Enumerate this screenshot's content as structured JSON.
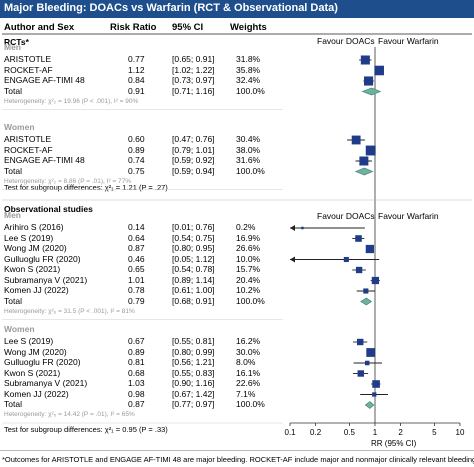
{
  "title": "Major Bleeding: DOACs vs Warfarin (RCT & Observational Data)",
  "columns": {
    "author": "Author and Sex",
    "rr": "Risk Ratio",
    "ci": "95% CI",
    "weights": "Weights"
  },
  "sections": {
    "rct": {
      "label": "RCTs*",
      "favour_left": "Favour DOACs",
      "favour_right": "Favour Warfarin",
      "subgroup_text": "Test for subgroup differences: χ²₁ = 1.21 (P = .27)"
    },
    "obs": {
      "label": "Observational studies",
      "favour_left": "Favour DOACs",
      "favour_right": "Favour Warfarin",
      "subgroup_text": "Test for subgroup differences: χ²₁ = 0.95 (P = .33)"
    }
  },
  "footnote": "*Outcomes for ARISTOTLE and ENGAGE AF-TIMI 48 are major bleeding. ROCKET-AF include major and nonmajor clinically relevant bleeding",
  "colors": {
    "header": "#1f4e8c",
    "marker": "#1f3c88",
    "diamond": "#6fb1a0",
    "heterogeneity": "#9a9a9a"
  },
  "chart_data": {
    "type": "forest",
    "x_scale": "log",
    "xlabel": "RR (95% CI)",
    "xticks": [
      "0.1",
      "0.2",
      "0.5",
      "1",
      "2",
      "5",
      "10"
    ],
    "xlim": [
      0.1,
      10
    ],
    "reference_line": 1,
    "groups": [
      {
        "id": "rct-men",
        "section": "RCTs*",
        "label": "Men",
        "studies": [
          {
            "name": "ARISTOTLE",
            "rr": "0.77",
            "ci": "[0.65; 0.91]",
            "weight": "31.8%",
            "x": 0.77,
            "lo": 0.65,
            "hi": 0.91,
            "w": 31.8
          },
          {
            "name": "ROCKET-AF",
            "rr": "1.12",
            "ci": "[1.02; 1.22]",
            "weight": "35.8%",
            "x": 1.12,
            "lo": 1.02,
            "hi": 1.22,
            "w": 35.8
          },
          {
            "name": "ENGAGE AF-TIMI 48",
            "rr": "0.84",
            "ci": "[0.73; 0.97]",
            "weight": "32.4%",
            "x": 0.84,
            "lo": 0.73,
            "hi": 0.97,
            "w": 32.4
          }
        ],
        "total": {
          "name": "Total",
          "rr": "0.91",
          "ci": "[0.71; 1.16]",
          "weight": "100.0%",
          "x": 0.91,
          "lo": 0.71,
          "hi": 1.16
        },
        "heterogeneity": "Heterogeneity: χ²₂ = 19.96 (P < .001), I² = 90%"
      },
      {
        "id": "rct-women",
        "section": "RCTs*",
        "label": "Women",
        "studies": [
          {
            "name": "ARISTOTLE",
            "rr": "0.60",
            "ci": "[0.47; 0.76]",
            "weight": "30.4%",
            "x": 0.6,
            "lo": 0.47,
            "hi": 0.76,
            "w": 30.4
          },
          {
            "name": "ROCKET-AF",
            "rr": "0.89",
            "ci": "[0.79; 1.01]",
            "weight": "38.0%",
            "x": 0.89,
            "lo": 0.79,
            "hi": 1.01,
            "w": 38.0
          },
          {
            "name": "ENGAGE AF-TIMI 48",
            "rr": "0.74",
            "ci": "[0.59; 0.92]",
            "weight": "31.6%",
            "x": 0.74,
            "lo": 0.59,
            "hi": 0.92,
            "w": 31.6
          }
        ],
        "total": {
          "name": "Total",
          "rr": "0.75",
          "ci": "[0.59; 0.94]",
          "weight": "100.0%",
          "x": 0.75,
          "lo": 0.59,
          "hi": 0.94
        },
        "heterogeneity": "Heterogeneity: χ²₂ = 8.86 (P = .01), I² = 77%"
      },
      {
        "id": "obs-men",
        "section": "Observational studies",
        "label": "Men",
        "studies": [
          {
            "name": "Arihiro S  (2016)",
            "rr": "0.14",
            "ci": "[0.01; 0.76]",
            "weight": "0.2%",
            "x": 0.14,
            "lo": 0.01,
            "hi": 0.76,
            "w": 0.2
          },
          {
            "name": "Lee S (2019)",
            "rr": "0.64",
            "ci": "[0.54; 0.75]",
            "weight": "16.9%",
            "x": 0.64,
            "lo": 0.54,
            "hi": 0.75,
            "w": 16.9
          },
          {
            "name": "Wong JM (2020)",
            "rr": "0.87",
            "ci": "[0.80; 0.95]",
            "weight": "26.6%",
            "x": 0.87,
            "lo": 0.8,
            "hi": 0.95,
            "w": 26.6
          },
          {
            "name": "Gulluoglu FR (2020)",
            "rr": "0.46",
            "ci": "[0.05; 1.12]",
            "weight": "10.0%",
            "x": 0.46,
            "lo": 0.05,
            "hi": 1.12,
            "w": 10.0
          },
          {
            "name": "Kwon S (2021)",
            "rr": "0.65",
            "ci": "[0.54; 0.78]",
            "weight": "15.7%",
            "x": 0.65,
            "lo": 0.54,
            "hi": 0.78,
            "w": 15.7
          },
          {
            "name": "Subramanya V (2021)",
            "rr": "1.01",
            "ci": "[0.89; 1.14]",
            "weight": "20.4%",
            "x": 1.01,
            "lo": 0.89,
            "hi": 1.14,
            "w": 20.4
          },
          {
            "name": "Komen JJ (2022)",
            "rr": "0.78",
            "ci": "[0.61; 1.00]",
            "weight": "10.2%",
            "x": 0.78,
            "lo": 0.61,
            "hi": 1.0,
            "w": 10.2
          }
        ],
        "total": {
          "name": "Total",
          "rr": "0.79",
          "ci": "[0.68; 0.91]",
          "weight": "100.0%",
          "x": 0.79,
          "lo": 0.68,
          "hi": 0.91
        },
        "heterogeneity": "Heterogeneity: χ²₆ = 31.5 (P < .001), I² = 81%"
      },
      {
        "id": "obs-women",
        "section": "Observational studies",
        "label": "Women",
        "studies": [
          {
            "name": "Lee S (2019)",
            "rr": "0.67",
            "ci": "[0.55; 0.81]",
            "weight": "16.2%",
            "x": 0.67,
            "lo": 0.55,
            "hi": 0.81,
            "w": 16.2
          },
          {
            "name": "Wong JM (2020)",
            "rr": "0.89",
            "ci": "[0.80; 0.99]",
            "weight": "30.0%",
            "x": 0.89,
            "lo": 0.8,
            "hi": 0.99,
            "w": 30.0
          },
          {
            "name": "Gulluoglu FR (2020)",
            "rr": "0.81",
            "ci": "[0.56; 1.21]",
            "weight": "8.0%",
            "x": 0.81,
            "lo": 0.56,
            "hi": 1.21,
            "w": 8.0
          },
          {
            "name": "Kwon S (2021)",
            "rr": "0.68",
            "ci": "[0.55; 0.83]",
            "weight": "16.1%",
            "x": 0.68,
            "lo": 0.55,
            "hi": 0.83,
            "w": 16.1
          },
          {
            "name": "Subramanya V (2021)",
            "rr": "1.03",
            "ci": "[0.90; 1.16]",
            "weight": "22.6%",
            "x": 1.03,
            "lo": 0.9,
            "hi": 1.16,
            "w": 22.6
          },
          {
            "name": "Komen JJ (2022)",
            "rr": "0.98",
            "ci": "[0.67; 1.42]",
            "weight": "7.1%",
            "x": 0.98,
            "lo": 0.67,
            "hi": 1.42,
            "w": 7.1
          }
        ],
        "total": {
          "name": "Total",
          "rr": "0.87",
          "ci": "[0.77; 0.97]",
          "weight": "100.0%",
          "x": 0.87,
          "lo": 0.77,
          "hi": 0.97
        },
        "heterogeneity": "Heterogeneity: χ²₅ = 14.42 (P = .01), I² = 65%"
      }
    ]
  }
}
